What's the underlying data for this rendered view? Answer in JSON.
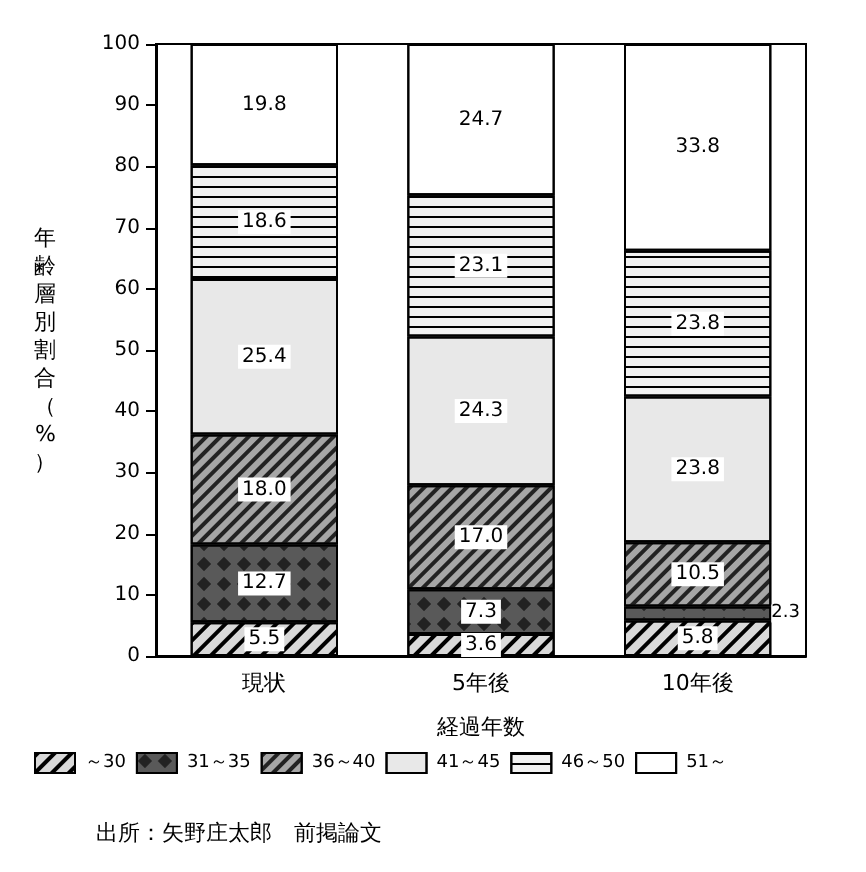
{
  "chart_data": {
    "type": "bar",
    "stacked": true,
    "xlabel": "経過年数",
    "ylabel": "年齢層別割合（%）",
    "categories": [
      "現状",
      "5年後",
      "10年後"
    ],
    "series": [
      {
        "name": "～30",
        "color": "#d9d9d9",
        "values": [
          5.5,
          3.6,
          5.8
        ],
        "value_labels": [
          "5.5",
          "3.6",
          "5.8"
        ]
      },
      {
        "name": "31～35",
        "color": "#595959",
        "values": [
          12.7,
          7.3,
          2.3
        ],
        "value_labels": [
          "12.7",
          "7.3",
          "2.3"
        ]
      },
      {
        "name": "36～40",
        "color": "#a6a6a6",
        "values": [
          18.0,
          17.0,
          10.5
        ],
        "value_labels": [
          "18.0",
          "17.0",
          "10.5"
        ]
      },
      {
        "name": "41～45",
        "color": "#e8e8e8",
        "values": [
          25.4,
          24.3,
          23.8
        ],
        "value_labels": [
          "25.4",
          "24.3",
          "23.8"
        ]
      },
      {
        "name": "46～50",
        "color": "#f2f2f2",
        "values": [
          18.6,
          23.1,
          23.8
        ],
        "value_labels": [
          "18.6",
          "23.1",
          "23.8"
        ]
      },
      {
        "name": "51～",
        "color": "#ffffff",
        "values": [
          19.8,
          24.7,
          33.8
        ],
        "value_labels": [
          "19.8",
          "24.7",
          "33.8"
        ]
      }
    ],
    "ylim": [
      0,
      100
    ],
    "yticks": [
      0,
      10,
      20,
      30,
      40,
      50,
      60,
      70,
      80,
      90,
      100
    ],
    "legend": "bottom",
    "grid": false,
    "annotations": [
      "出所：矢野庄太郎　前掲論文"
    ]
  }
}
